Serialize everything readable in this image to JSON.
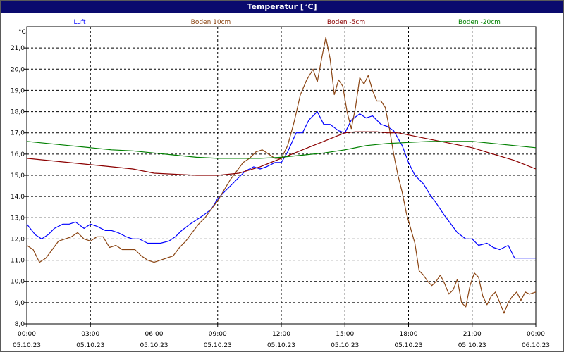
{
  "title": "Temperatur [°C]",
  "chart_data": {
    "type": "line",
    "title": "Temperatur [°C]",
    "ylabel": "°C",
    "ylim": [
      8.0,
      22.0
    ],
    "yticks": [
      "8,0",
      "9,0",
      "10,0",
      "11,0",
      "12,0",
      "13,0",
      "14,0",
      "15,0",
      "16,0",
      "17,0",
      "18,0",
      "19,0",
      "20,0",
      "21,0"
    ],
    "xlim": [
      0,
      24
    ],
    "xticks": [
      {
        "x": 0,
        "time": "00:00",
        "date": "05.10.23"
      },
      {
        "x": 3,
        "time": "03:00",
        "date": "05.10.23"
      },
      {
        "x": 6,
        "time": "06:00",
        "date": "05.10.23"
      },
      {
        "x": 9,
        "time": "09:00",
        "date": "05.10.23"
      },
      {
        "x": 12,
        "time": "12:00",
        "date": "05.10.23"
      },
      {
        "x": 15,
        "time": "15:00",
        "date": "05.10.23"
      },
      {
        "x": 18,
        "time": "18:00",
        "date": "05.10.23"
      },
      {
        "x": 21,
        "time": "21:00",
        "date": "05.10.23"
      },
      {
        "x": 24,
        "time": "00:00",
        "date": "06.10.23"
      }
    ],
    "series": [
      {
        "name": "Luft",
        "color": "#0000ff",
        "x": [
          0,
          0.4,
          0.7,
          1.0,
          1.3,
          1.7,
          2.0,
          2.3,
          2.7,
          3.0,
          3.3,
          3.7,
          4.0,
          4.3,
          4.7,
          5.0,
          5.3,
          5.7,
          6.0,
          6.3,
          6.7,
          7.0,
          7.3,
          7.7,
          8.0,
          8.3,
          8.7,
          9.0,
          9.3,
          9.7,
          10.0,
          10.3,
          10.7,
          11.0,
          11.3,
          11.7,
          12.0,
          12.3,
          12.7,
          13.0,
          13.3,
          13.7,
          14.0,
          14.3,
          14.7,
          15.0,
          15.3,
          15.7,
          16.0,
          16.3,
          16.7,
          17.0,
          17.3,
          17.7,
          18.0,
          18.3,
          18.7,
          19.0,
          19.3,
          19.7,
          20.0,
          20.3,
          20.7,
          21.0,
          21.3,
          21.7,
          22.0,
          22.3,
          22.7,
          23.0,
          23.5,
          24.0
        ],
        "y": [
          12.7,
          12.2,
          12.0,
          12.2,
          12.5,
          12.7,
          12.7,
          12.8,
          12.5,
          12.7,
          12.6,
          12.4,
          12.4,
          12.3,
          12.1,
          12.0,
          12.0,
          11.8,
          11.8,
          11.8,
          11.9,
          12.1,
          12.4,
          12.7,
          12.9,
          13.1,
          13.4,
          13.9,
          14.2,
          14.6,
          14.9,
          15.2,
          15.4,
          15.3,
          15.4,
          15.6,
          15.6,
          16.1,
          17.0,
          17.0,
          17.6,
          18.0,
          17.4,
          17.4,
          17.1,
          17.0,
          17.6,
          17.9,
          17.7,
          17.8,
          17.4,
          17.3,
          17.1,
          16.4,
          15.6,
          15.0,
          14.6,
          14.1,
          13.7,
          13.1,
          12.7,
          12.3,
          12.0,
          12.0,
          11.7,
          11.8,
          11.6,
          11.5,
          11.7,
          11.1,
          11.1,
          11.1
        ]
      },
      {
        "name": "Boden 10cm",
        "color": "#8b4513",
        "x": [
          0,
          0.3,
          0.6,
          0.9,
          1.2,
          1.5,
          1.8,
          2.1,
          2.4,
          2.7,
          3.0,
          3.3,
          3.6,
          3.9,
          4.2,
          4.5,
          4.8,
          5.1,
          5.4,
          5.7,
          6.0,
          6.3,
          6.6,
          6.9,
          7.2,
          7.5,
          7.8,
          8.1,
          8.4,
          8.7,
          9.0,
          9.3,
          9.6,
          9.9,
          10.2,
          10.5,
          10.8,
          11.1,
          11.4,
          11.7,
          12.0,
          12.3,
          12.6,
          12.9,
          13.2,
          13.5,
          13.7,
          13.9,
          14.1,
          14.3,
          14.5,
          14.7,
          14.9,
          15.1,
          15.3,
          15.5,
          15.7,
          15.9,
          16.1,
          16.3,
          16.5,
          16.7,
          16.9,
          17.1,
          17.3,
          17.5,
          17.7,
          17.9,
          18.1,
          18.3,
          18.5,
          18.7,
          18.9,
          19.1,
          19.3,
          19.5,
          19.7,
          19.9,
          20.1,
          20.3,
          20.5,
          20.7,
          20.9,
          21.1,
          21.3,
          21.5,
          21.7,
          21.9,
          22.1,
          22.3,
          22.5,
          22.7,
          22.9,
          23.1,
          23.3,
          23.5,
          23.7,
          24.0
        ],
        "y": [
          11.7,
          11.5,
          10.9,
          11.1,
          11.5,
          11.9,
          12.0,
          12.1,
          12.3,
          12.0,
          11.9,
          12.1,
          12.1,
          11.6,
          11.7,
          11.5,
          11.5,
          11.5,
          11.2,
          11.0,
          10.9,
          11.0,
          11.1,
          11.2,
          11.6,
          11.9,
          12.3,
          12.7,
          13.0,
          13.4,
          13.8,
          14.3,
          14.8,
          15.2,
          15.6,
          15.8,
          16.1,
          16.2,
          16.0,
          15.8,
          15.8,
          16.4,
          17.5,
          18.8,
          19.5,
          20.0,
          19.4,
          20.5,
          21.5,
          20.5,
          18.8,
          19.5,
          19.2,
          18.0,
          17.2,
          18.2,
          19.6,
          19.3,
          19.7,
          19.0,
          18.5,
          18.5,
          18.2,
          17.2,
          16.0,
          15.0,
          14.2,
          13.2,
          12.5,
          11.8,
          10.5,
          10.3,
          10.0,
          9.8,
          10.0,
          10.3,
          9.9,
          9.4,
          9.6,
          10.1,
          9.0,
          8.8,
          9.8,
          10.4,
          10.2,
          9.3,
          8.9,
          9.3,
          9.5,
          9.0,
          8.5,
          9.0,
          9.3,
          9.5,
          9.1,
          9.5,
          9.4,
          9.5
        ]
      },
      {
        "name": "Boden -5cm",
        "color": "#8b0000",
        "x": [
          0,
          1,
          2,
          3,
          4,
          5,
          6,
          7,
          8,
          9,
          10,
          11,
          12,
          12.5,
          13,
          13.5,
          14,
          14.5,
          15,
          15.5,
          16,
          16.5,
          17,
          17.5,
          18,
          19,
          20,
          21,
          22,
          23,
          24
        ],
        "y": [
          15.8,
          15.7,
          15.6,
          15.5,
          15.4,
          15.3,
          15.1,
          15.05,
          15.0,
          15.0,
          15.1,
          15.4,
          15.8,
          16.0,
          16.2,
          16.4,
          16.6,
          16.8,
          17.0,
          17.05,
          17.05,
          17.05,
          17.0,
          17.0,
          16.9,
          16.7,
          16.5,
          16.3,
          16.0,
          15.7,
          15.3
        ]
      },
      {
        "name": "Boden -20cm",
        "color": "#008000",
        "x": [
          0,
          1,
          2,
          3,
          4,
          5,
          6,
          7,
          8,
          9,
          10,
          11,
          12,
          13,
          14,
          15,
          16,
          17,
          18,
          19,
          20,
          21,
          22,
          23,
          24
        ],
        "y": [
          16.6,
          16.5,
          16.4,
          16.3,
          16.2,
          16.15,
          16.05,
          15.95,
          15.85,
          15.8,
          15.8,
          15.8,
          15.85,
          15.95,
          16.05,
          16.2,
          16.4,
          16.5,
          16.55,
          16.6,
          16.6,
          16.6,
          16.5,
          16.4,
          16.3
        ]
      }
    ]
  }
}
